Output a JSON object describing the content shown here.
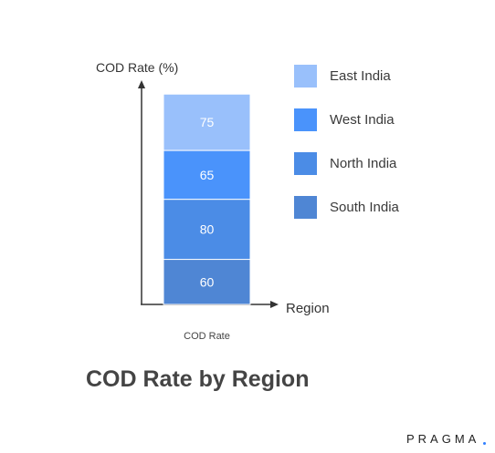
{
  "chart_data": {
    "type": "bar",
    "stacked": true,
    "categories": [
      "COD Rate"
    ],
    "series": [
      {
        "name": "South India",
        "values": [
          60
        ],
        "color": "#4f86d4"
      },
      {
        "name": "North India",
        "values": [
          80
        ],
        "color": "#4b8ce6"
      },
      {
        "name": "West India",
        "values": [
          65
        ],
        "color": "#4a93fb"
      },
      {
        "name": "East India",
        "values": [
          75
        ],
        "color": "#99c0fb"
      }
    ],
    "legend_order": [
      "East India",
      "West India",
      "North India",
      "South India"
    ],
    "title": "COD Rate by Region",
    "xlabel": "Region",
    "ylabel": "COD Rate (%)",
    "ylim": [
      0,
      290
    ],
    "grid": false,
    "legend_position": "right"
  },
  "brand": "PRAGMA",
  "brand_dot_color": "#2f7fff"
}
